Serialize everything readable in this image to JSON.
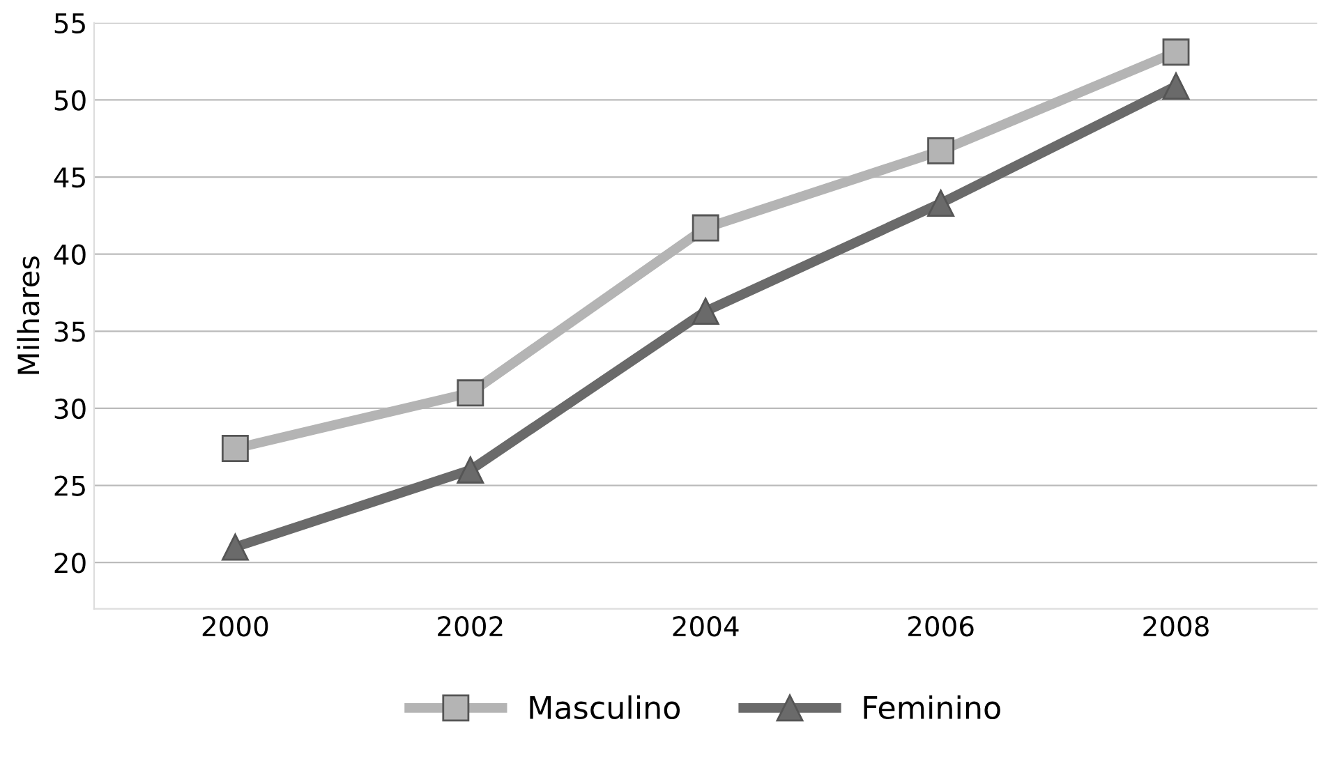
{
  "chart_data": {
    "type": "line",
    "ylabel": "Milhares",
    "categories": [
      "2000",
      "2002",
      "2004",
      "2006",
      "2008"
    ],
    "series": [
      {
        "name": "Masculino",
        "color": "#b4b4b4",
        "marker": "square",
        "values": [
          27.4,
          31.0,
          41.7,
          46.7,
          53.1
        ]
      },
      {
        "name": "Feminino",
        "color": "#6a6a6a",
        "marker": "triangle",
        "values": [
          21.0,
          26.0,
          36.3,
          43.3,
          50.9
        ]
      }
    ],
    "ylim": [
      17,
      55
    ],
    "yticks": [
      20,
      25,
      30,
      35,
      40,
      45,
      50,
      55
    ],
    "grid": "y",
    "legend": "bottom",
    "line_style": "solid"
  }
}
